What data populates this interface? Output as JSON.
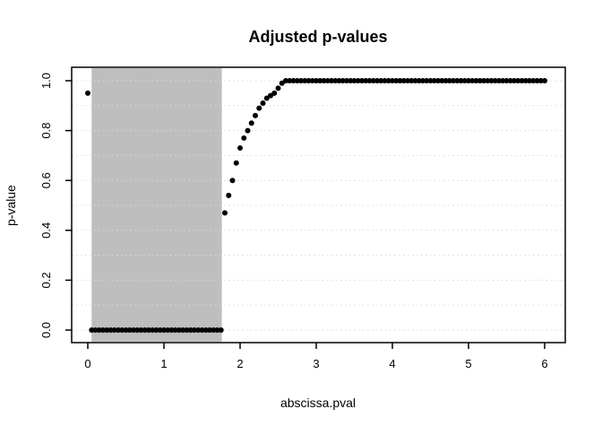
{
  "chart_data": {
    "type": "scatter",
    "title": "Adjusted p-values",
    "xlabel": "abscissa.pval",
    "ylabel": "p-value",
    "xlim": [
      -0.24,
      6.24
    ],
    "ylim": [
      -0.04,
      1.04
    ],
    "x_ticks": [
      "0",
      "1",
      "2",
      "3",
      "4",
      "5",
      "6"
    ],
    "x_tick_values": [
      0,
      1,
      2,
      3,
      4,
      5,
      6
    ],
    "y_ticks": [
      "0.0",
      "0.2",
      "0.4",
      "0.6",
      "0.8",
      "1.0"
    ],
    "y_tick_values": [
      0,
      0.2,
      0.4,
      0.6,
      0.8,
      1.0
    ],
    "grid": {
      "horizontal_step": 0.1,
      "vertical": false,
      "style": "dotted",
      "color": "#d9d9d9"
    },
    "shaded_region": {
      "x0": 0.05,
      "x1": 1.76,
      "color": "#bebebe"
    },
    "point_color": "#000000",
    "point_radius": 3,
    "legend": "none",
    "points": [
      [
        0,
        0.95
      ],
      [
        0.05,
        0
      ],
      [
        0.1,
        0
      ],
      [
        0.15,
        0
      ],
      [
        0.2,
        0
      ],
      [
        0.25,
        0
      ],
      [
        0.3,
        0
      ],
      [
        0.35,
        0
      ],
      [
        0.4,
        0
      ],
      [
        0.45,
        0
      ],
      [
        0.5,
        0
      ],
      [
        0.55,
        0
      ],
      [
        0.6,
        0
      ],
      [
        0.65,
        0
      ],
      [
        0.7,
        0
      ],
      [
        0.75,
        0
      ],
      [
        0.8,
        0
      ],
      [
        0.85,
        0
      ],
      [
        0.9,
        0
      ],
      [
        0.95,
        0
      ],
      [
        1.0,
        0
      ],
      [
        1.05,
        0
      ],
      [
        1.1,
        0
      ],
      [
        1.15,
        0
      ],
      [
        1.2,
        0
      ],
      [
        1.25,
        0
      ],
      [
        1.3,
        0
      ],
      [
        1.35,
        0
      ],
      [
        1.4,
        0
      ],
      [
        1.45,
        0
      ],
      [
        1.5,
        0
      ],
      [
        1.55,
        0
      ],
      [
        1.6,
        0
      ],
      [
        1.65,
        0
      ],
      [
        1.7,
        0
      ],
      [
        1.75,
        0
      ],
      [
        1.8,
        0.47
      ],
      [
        1.85,
        0.54
      ],
      [
        1.9,
        0.6
      ],
      [
        1.95,
        0.67
      ],
      [
        2.0,
        0.73
      ],
      [
        2.05,
        0.77
      ],
      [
        2.1,
        0.8
      ],
      [
        2.15,
        0.83
      ],
      [
        2.2,
        0.86
      ],
      [
        2.25,
        0.89
      ],
      [
        2.3,
        0.91
      ],
      [
        2.35,
        0.93
      ],
      [
        2.4,
        0.94
      ],
      [
        2.45,
        0.95
      ],
      [
        2.5,
        0.97
      ],
      [
        2.55,
        0.99
      ],
      [
        2.6,
        1
      ],
      [
        2.65,
        1
      ],
      [
        2.7,
        1
      ],
      [
        2.75,
        1
      ],
      [
        2.8,
        1
      ],
      [
        2.85,
        1
      ],
      [
        2.9,
        1
      ],
      [
        2.95,
        1
      ],
      [
        3.0,
        1
      ],
      [
        3.05,
        1
      ],
      [
        3.1,
        1
      ],
      [
        3.15,
        1
      ],
      [
        3.2,
        1
      ],
      [
        3.25,
        1
      ],
      [
        3.3,
        1
      ],
      [
        3.35,
        1
      ],
      [
        3.4,
        1
      ],
      [
        3.45,
        1
      ],
      [
        3.5,
        1
      ],
      [
        3.55,
        1
      ],
      [
        3.6,
        1
      ],
      [
        3.65,
        1
      ],
      [
        3.7,
        1
      ],
      [
        3.75,
        1
      ],
      [
        3.8,
        1
      ],
      [
        3.85,
        1
      ],
      [
        3.9,
        1
      ],
      [
        3.95,
        1
      ],
      [
        4.0,
        1
      ],
      [
        4.05,
        1
      ],
      [
        4.1,
        1
      ],
      [
        4.15,
        1
      ],
      [
        4.2,
        1
      ],
      [
        4.25,
        1
      ],
      [
        4.3,
        1
      ],
      [
        4.35,
        1
      ],
      [
        4.4,
        1
      ],
      [
        4.45,
        1
      ],
      [
        4.5,
        1
      ],
      [
        4.55,
        1
      ],
      [
        4.6,
        1
      ],
      [
        4.65,
        1
      ],
      [
        4.7,
        1
      ],
      [
        4.75,
        1
      ],
      [
        4.8,
        1
      ],
      [
        4.85,
        1
      ],
      [
        4.9,
        1
      ],
      [
        4.95,
        1
      ],
      [
        5.0,
        1
      ],
      [
        5.05,
        1
      ],
      [
        5.1,
        1
      ],
      [
        5.15,
        1
      ],
      [
        5.2,
        1
      ],
      [
        5.25,
        1
      ],
      [
        5.3,
        1
      ],
      [
        5.35,
        1
      ],
      [
        5.4,
        1
      ],
      [
        5.45,
        1
      ],
      [
        5.5,
        1
      ],
      [
        5.55,
        1
      ],
      [
        5.6,
        1
      ],
      [
        5.65,
        1
      ],
      [
        5.7,
        1
      ],
      [
        5.75,
        1
      ],
      [
        5.8,
        1
      ],
      [
        5.85,
        1
      ],
      [
        5.9,
        1
      ],
      [
        5.95,
        1
      ],
      [
        6.0,
        1
      ]
    ]
  }
}
